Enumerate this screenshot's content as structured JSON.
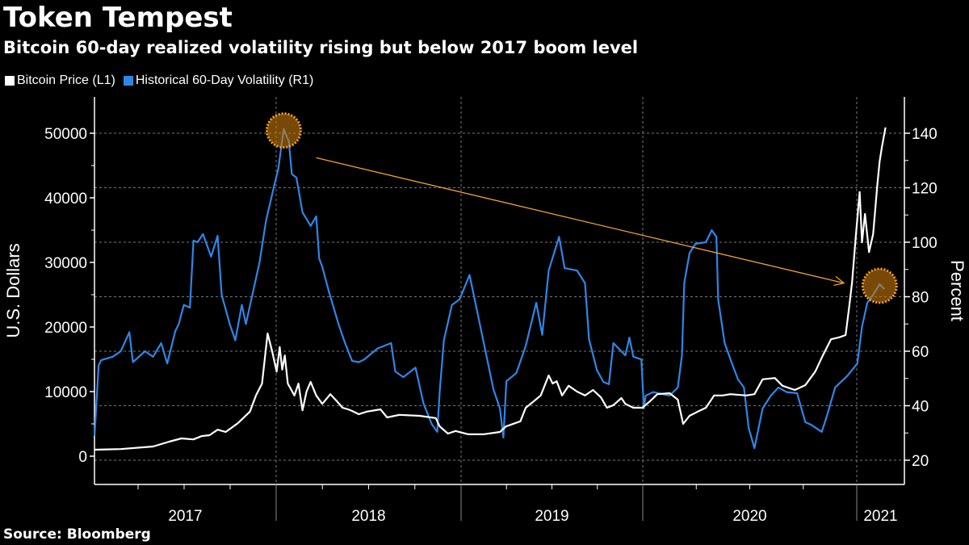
{
  "title": "Token Tempest",
  "subtitle": "Bitcoin 60-day realized volatility rising but below 2017 boom level",
  "source": "Source: Bloomberg",
  "colors": {
    "price": "#ffffff",
    "volatility": "#2f86e6",
    "annotation": "#f0a030",
    "grid": "#777777"
  },
  "chart_data": {
    "type": "line",
    "legend_placement": "top-left",
    "grid": true,
    "x_ticks": [
      "2017",
      "2018",
      "2019",
      "2020",
      "2021"
    ],
    "y_left": {
      "label": "U.S. Dollars",
      "ticks": [
        "0",
        "10000",
        "20000",
        "30000",
        "40000",
        "50000"
      ],
      "range": [
        0,
        50000
      ]
    },
    "y_right": {
      "label": "Percent",
      "ticks": [
        "20",
        "40",
        "60",
        "80",
        "100",
        "120",
        "140"
      ],
      "range": [
        20,
        140
      ]
    },
    "annotations": [
      {
        "type": "circle",
        "series": "Historical 60-Day Volatility (R1)",
        "date": "2018-01-16",
        "value": 141
      },
      {
        "type": "circle",
        "series": "Historical 60-Day Volatility (R1)",
        "date": "2021-02-09",
        "value": 84
      },
      {
        "type": "arrow",
        "from": {
          "date": "2018-03-21",
          "value": 131
        },
        "to": {
          "date": "2020-12-10",
          "value": 85
        }
      }
    ],
    "series": [
      {
        "name": "Bitcoin Price (L1)",
        "axis": "left",
        "points": [
          [
            "2017-01-05",
            1000
          ],
          [
            "2017-02-27",
            1100
          ],
          [
            "2017-05-02",
            1500
          ],
          [
            "2017-06-03",
            2250
          ],
          [
            "2017-06-27",
            2750
          ],
          [
            "2017-07-21",
            2600
          ],
          [
            "2017-08-06",
            3100
          ],
          [
            "2017-08-22",
            3250
          ],
          [
            "2017-09-07",
            4100
          ],
          [
            "2017-09-23",
            3750
          ],
          [
            "2017-10-17",
            5100
          ],
          [
            "2017-11-10",
            6900
          ],
          [
            "2017-11-22",
            9400
          ],
          [
            "2017-12-04",
            11250
          ],
          [
            "2017-12-15",
            19000
          ],
          [
            "2017-12-24",
            16250
          ],
          [
            "2018-01-02",
            13100
          ],
          [
            "2018-01-08",
            16900
          ],
          [
            "2018-01-13",
            13400
          ],
          [
            "2018-01-18",
            15600
          ],
          [
            "2018-01-24",
            11250
          ],
          [
            "2018-02-06",
            9400
          ],
          [
            "2018-02-14",
            11250
          ],
          [
            "2018-02-22",
            7100
          ],
          [
            "2018-03-02",
            10000
          ],
          [
            "2018-03-10",
            11500
          ],
          [
            "2018-03-21",
            9400
          ],
          [
            "2018-04-02",
            8100
          ],
          [
            "2018-04-18",
            9600
          ],
          [
            "2018-05-01",
            8500
          ],
          [
            "2018-05-12",
            7500
          ],
          [
            "2018-05-23",
            7250
          ],
          [
            "2018-05-31",
            7000
          ],
          [
            "2018-06-13",
            6500
          ],
          [
            "2018-06-29",
            6900
          ],
          [
            "2018-07-26",
            7250
          ],
          [
            "2018-08-08",
            6000
          ],
          [
            "2018-09-01",
            6400
          ],
          [
            "2018-10-11",
            6250
          ],
          [
            "2018-11-12",
            5900
          ],
          [
            "2018-11-20",
            4600
          ],
          [
            "2018-12-06",
            3500
          ],
          [
            "2018-12-21",
            3900
          ],
          [
            "2019-01-15",
            3400
          ],
          [
            "2019-02-16",
            3400
          ],
          [
            "2019-03-20",
            3750
          ],
          [
            "2019-04-01",
            4600
          ],
          [
            "2019-04-30",
            5400
          ],
          [
            "2019-05-11",
            7500
          ],
          [
            "2019-05-27",
            8500
          ],
          [
            "2019-06-10",
            9400
          ],
          [
            "2019-06-26",
            12500
          ],
          [
            "2019-07-04",
            11250
          ],
          [
            "2019-07-12",
            11600
          ],
          [
            "2019-07-23",
            9400
          ],
          [
            "2019-08-05",
            10900
          ],
          [
            "2019-08-22",
            10000
          ],
          [
            "2019-09-07",
            9400
          ],
          [
            "2019-09-23",
            10250
          ],
          [
            "2019-10-09",
            9100
          ],
          [
            "2019-10-21",
            7500
          ],
          [
            "2019-11-03",
            7900
          ],
          [
            "2019-11-19",
            9000
          ],
          [
            "2019-11-27",
            8100
          ],
          [
            "2019-12-13",
            7500
          ],
          [
            "2019-12-31",
            7500
          ],
          [
            "2020-01-12",
            8400
          ],
          [
            "2020-01-26",
            9600
          ],
          [
            "2020-02-16",
            9750
          ],
          [
            "2020-03-01",
            8750
          ],
          [
            "2020-03-10",
            5000
          ],
          [
            "2020-03-21",
            6250
          ],
          [
            "2020-04-04",
            6900
          ],
          [
            "2020-04-18",
            7500
          ],
          [
            "2020-05-02",
            9400
          ],
          [
            "2020-05-16",
            9400
          ],
          [
            "2020-05-30",
            9600
          ],
          [
            "2020-06-26",
            9400
          ],
          [
            "2020-07-10",
            9600
          ],
          [
            "2020-07-24",
            11900
          ],
          [
            "2020-08-14",
            12100
          ],
          [
            "2020-08-27",
            10900
          ],
          [
            "2020-09-17",
            10250
          ],
          [
            "2020-10-05",
            11000
          ],
          [
            "2020-10-22",
            13100
          ],
          [
            "2020-11-04",
            15600
          ],
          [
            "2020-11-18",
            18100
          ],
          [
            "2020-12-02",
            18400
          ],
          [
            "2020-12-13",
            18750
          ],
          [
            "2020-12-19",
            23100
          ],
          [
            "2020-12-24",
            26900
          ],
          [
            "2020-12-30",
            33750
          ],
          [
            "2021-01-06",
            40900
          ],
          [
            "2021-01-10",
            33100
          ],
          [
            "2021-01-15",
            37500
          ],
          [
            "2021-01-22",
            31600
          ],
          [
            "2021-01-29",
            34400
          ],
          [
            "2021-02-05",
            41900
          ],
          [
            "2021-02-09",
            45600
          ],
          [
            "2021-02-13",
            47900
          ],
          [
            "2021-02-19",
            50900
          ]
        ]
      },
      {
        "name": "Historical 60-Day Volatility (R1)",
        "axis": "right",
        "points": [
          [
            "2017-01-06",
            29
          ],
          [
            "2017-01-14",
            54.7
          ],
          [
            "2017-01-19",
            56.7
          ],
          [
            "2017-02-11",
            58
          ],
          [
            "2017-02-27",
            60
          ],
          [
            "2017-03-16",
            67
          ],
          [
            "2017-03-23",
            56
          ],
          [
            "2017-04-16",
            60
          ],
          [
            "2017-05-02",
            58
          ],
          [
            "2017-05-18",
            63
          ],
          [
            "2017-05-30",
            55.5
          ],
          [
            "2017-06-15",
            67.4
          ],
          [
            "2017-06-22",
            70
          ],
          [
            "2017-07-02",
            77
          ],
          [
            "2017-07-14",
            76
          ],
          [
            "2017-07-21",
            100.6
          ],
          [
            "2017-07-29",
            100
          ],
          [
            "2017-08-09",
            103
          ],
          [
            "2017-08-25",
            94.7
          ],
          [
            "2017-09-07",
            102.4
          ],
          [
            "2017-09-15",
            80.7
          ],
          [
            "2017-10-01",
            70
          ],
          [
            "2017-10-12",
            64
          ],
          [
            "2017-10-25",
            77
          ],
          [
            "2017-11-02",
            70
          ],
          [
            "2017-11-29",
            92.6
          ],
          [
            "2017-12-12",
            108
          ],
          [
            "2017-12-28",
            120.7
          ],
          [
            "2018-01-05",
            126.7
          ],
          [
            "2018-01-16",
            141.5
          ],
          [
            "2018-01-26",
            137
          ],
          [
            "2018-02-01",
            125
          ],
          [
            "2018-02-10",
            123.7
          ],
          [
            "2018-02-22",
            111
          ],
          [
            "2018-03-10",
            106
          ],
          [
            "2018-03-21",
            109.5
          ],
          [
            "2018-03-27",
            94
          ],
          [
            "2018-04-02",
            91
          ],
          [
            "2018-04-15",
            82
          ],
          [
            "2018-05-04",
            70
          ],
          [
            "2018-05-17",
            63
          ],
          [
            "2018-05-31",
            56.4
          ],
          [
            "2018-06-13",
            56
          ],
          [
            "2018-06-24",
            57
          ],
          [
            "2018-07-20",
            61
          ],
          [
            "2018-08-16",
            63
          ],
          [
            "2018-08-24",
            52.6
          ],
          [
            "2018-09-09",
            50.5
          ],
          [
            "2018-10-03",
            54
          ],
          [
            "2018-10-19",
            40.7
          ],
          [
            "2018-11-04",
            33.3
          ],
          [
            "2018-11-15",
            30.4
          ],
          [
            "2018-11-20",
            45.5
          ],
          [
            "2018-11-28",
            64
          ],
          [
            "2018-12-14",
            77
          ],
          [
            "2018-12-29",
            79
          ],
          [
            "2019-01-18",
            88
          ],
          [
            "2019-03-07",
            46
          ],
          [
            "2019-03-20",
            39
          ],
          [
            "2019-03-27",
            28.3
          ],
          [
            "2019-04-02",
            49
          ],
          [
            "2019-04-22",
            52
          ],
          [
            "2019-05-11",
            62
          ],
          [
            "2019-06-01",
            77.8
          ],
          [
            "2019-06-13",
            66
          ],
          [
            "2019-06-26",
            89.6
          ],
          [
            "2019-07-17",
            102
          ],
          [
            "2019-07-28",
            90.5
          ],
          [
            "2019-08-22",
            89.6
          ],
          [
            "2019-09-07",
            85
          ],
          [
            "2019-09-15",
            64.4
          ],
          [
            "2019-10-01",
            53
          ],
          [
            "2019-10-14",
            48.7
          ],
          [
            "2019-10-25",
            47.9
          ],
          [
            "2019-11-03",
            63
          ],
          [
            "2019-11-27",
            58.5
          ],
          [
            "2019-12-05",
            65
          ],
          [
            "2019-12-13",
            58
          ],
          [
            "2019-12-29",
            57
          ],
          [
            "2020-01-03",
            39
          ],
          [
            "2020-01-06",
            43.7
          ],
          [
            "2020-01-19",
            45
          ],
          [
            "2020-02-16",
            43.7
          ],
          [
            "2020-03-01",
            46.7
          ],
          [
            "2020-03-08",
            58.5
          ],
          [
            "2020-03-12",
            85
          ],
          [
            "2020-03-21",
            96
          ],
          [
            "2020-03-31",
            99.4
          ],
          [
            "2020-04-18",
            100
          ],
          [
            "2020-04-28",
            104.4
          ],
          [
            "2020-05-06",
            102
          ],
          [
            "2020-05-09",
            79
          ],
          [
            "2020-05-20",
            63
          ],
          [
            "2020-05-30",
            57
          ],
          [
            "2020-06-12",
            49.6
          ],
          [
            "2020-06-22",
            46.7
          ],
          [
            "2020-06-30",
            31.9
          ],
          [
            "2020-07-10",
            24.4
          ],
          [
            "2020-07-24",
            39
          ],
          [
            "2020-08-07",
            43.7
          ],
          [
            "2020-08-20",
            46.7
          ],
          [
            "2020-09-03",
            45
          ],
          [
            "2020-09-21",
            44.6
          ],
          [
            "2020-10-05",
            34
          ],
          [
            "2020-10-15",
            33
          ],
          [
            "2020-11-02",
            30.4
          ],
          [
            "2020-11-11",
            36.3
          ],
          [
            "2020-11-25",
            46.7
          ],
          [
            "2020-12-16",
            51
          ],
          [
            "2021-01-02",
            55.5
          ],
          [
            "2021-01-10",
            69
          ],
          [
            "2021-01-19",
            77.8
          ],
          [
            "2021-01-29",
            80.7
          ],
          [
            "2021-02-09",
            84.6
          ],
          [
            "2021-02-17",
            82.8
          ]
        ]
      }
    ]
  }
}
